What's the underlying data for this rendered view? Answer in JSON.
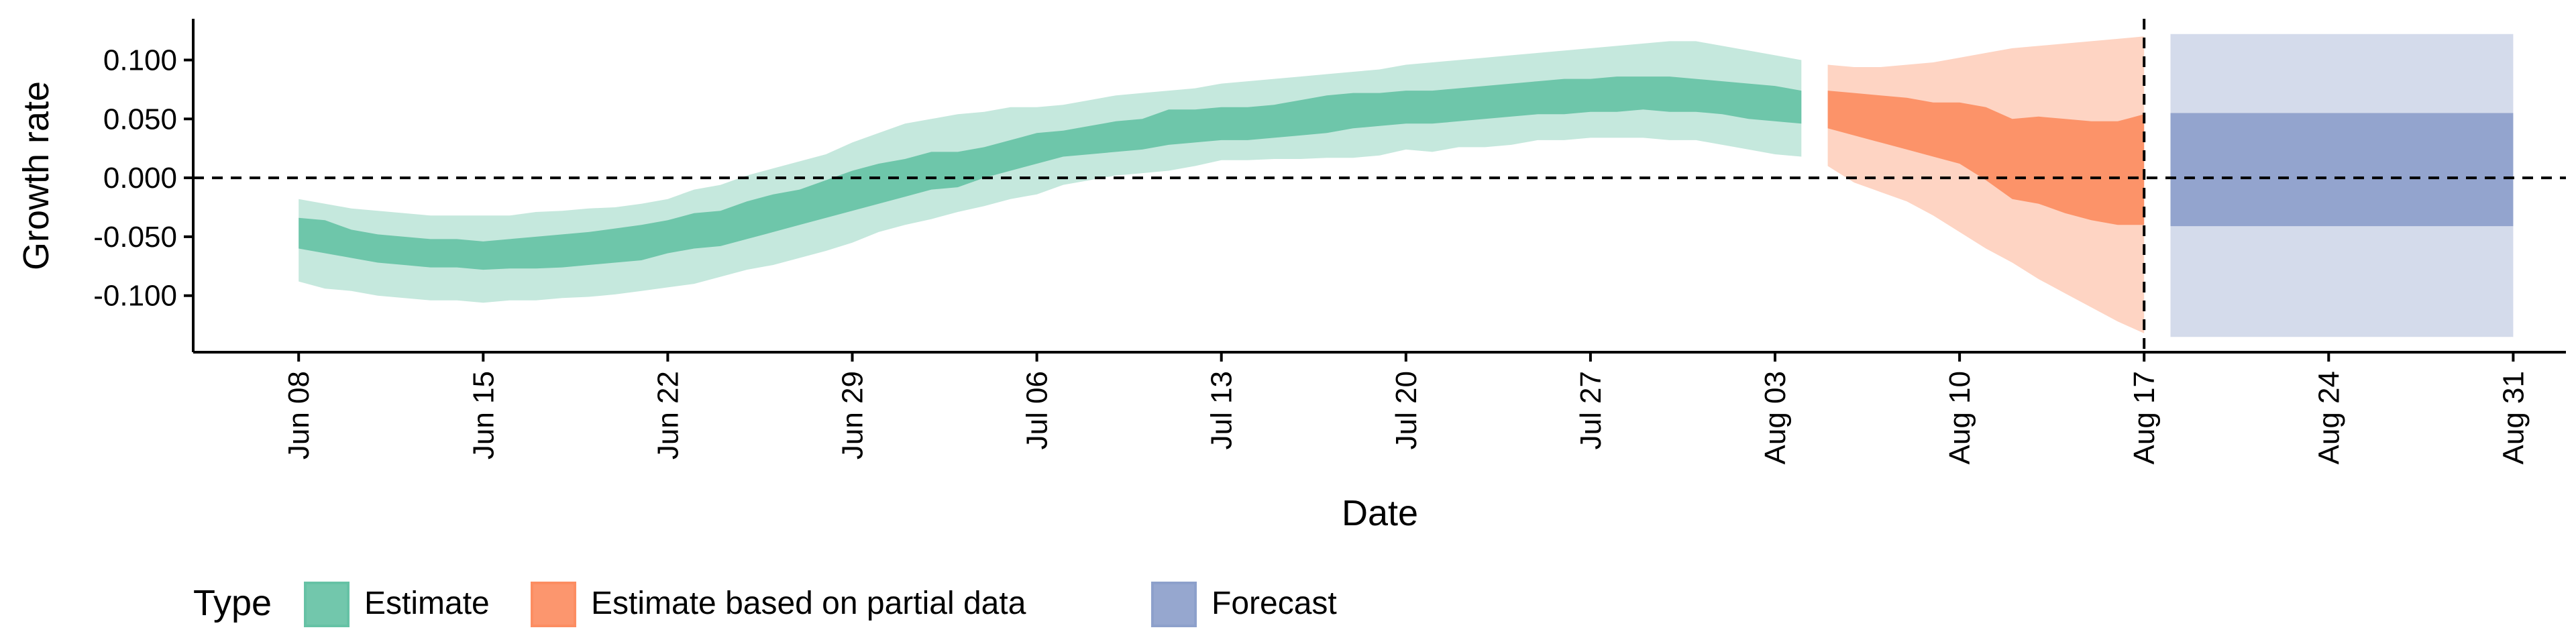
{
  "chart_data": {
    "type": "area",
    "xlabel": "Date",
    "ylabel": "Growth rate",
    "x_range": [
      "2020-06-04",
      "2020-09-02"
    ],
    "ylim": [
      -0.148,
      0.135
    ],
    "y_ticks": [
      {
        "value": 0.1,
        "label": "0.100"
      },
      {
        "value": 0.05,
        "label": "0.050"
      },
      {
        "value": 0.0,
        "label": "0.000"
      },
      {
        "value": -0.05,
        "label": "-0.050"
      },
      {
        "value": -0.1,
        "label": "-0.100"
      }
    ],
    "x_ticks": [
      {
        "date": "2020-06-08",
        "label": "Jun 08"
      },
      {
        "date": "2020-06-15",
        "label": "Jun 15"
      },
      {
        "date": "2020-06-22",
        "label": "Jun 22"
      },
      {
        "date": "2020-06-29",
        "label": "Jun 29"
      },
      {
        "date": "2020-07-06",
        "label": "Jul 06"
      },
      {
        "date": "2020-07-13",
        "label": "Jul 13"
      },
      {
        "date": "2020-07-20",
        "label": "Jul 20"
      },
      {
        "date": "2020-07-27",
        "label": "Jul 27"
      },
      {
        "date": "2020-08-03",
        "label": "Aug 03"
      },
      {
        "date": "2020-08-10",
        "label": "Aug 10"
      },
      {
        "date": "2020-08-17",
        "label": "Aug 17"
      },
      {
        "date": "2020-08-24",
        "label": "Aug 24"
      },
      {
        "date": "2020-08-31",
        "label": "Aug 31"
      }
    ],
    "reference_lines": [
      {
        "axis": "y",
        "value": 0.0,
        "style": "dashed"
      },
      {
        "axis": "x",
        "value": "2020-08-17",
        "style": "dashed"
      }
    ],
    "legend": {
      "title": "Type",
      "position": "bottom-left"
    },
    "series": [
      {
        "name": "Estimate",
        "color": "#66C2A5",
        "date": [
          "2020-06-08",
          "2020-06-09",
          "2020-06-10",
          "2020-06-11",
          "2020-06-12",
          "2020-06-13",
          "2020-06-14",
          "2020-06-15",
          "2020-06-16",
          "2020-06-17",
          "2020-06-18",
          "2020-06-19",
          "2020-06-20",
          "2020-06-21",
          "2020-06-22",
          "2020-06-23",
          "2020-06-24",
          "2020-06-25",
          "2020-06-26",
          "2020-06-27",
          "2020-06-28",
          "2020-06-29",
          "2020-06-30",
          "2020-07-01",
          "2020-07-02",
          "2020-07-03",
          "2020-07-04",
          "2020-07-05",
          "2020-07-06",
          "2020-07-07",
          "2020-07-08",
          "2020-07-09",
          "2020-07-10",
          "2020-07-11",
          "2020-07-12",
          "2020-07-13",
          "2020-07-14",
          "2020-07-15",
          "2020-07-16",
          "2020-07-17",
          "2020-07-18",
          "2020-07-19",
          "2020-07-20",
          "2020-07-21",
          "2020-07-22",
          "2020-07-23",
          "2020-07-24",
          "2020-07-25",
          "2020-07-26",
          "2020-07-27",
          "2020-07-28",
          "2020-07-29",
          "2020-07-30",
          "2020-07-31",
          "2020-08-01",
          "2020-08-02",
          "2020-08-03",
          "2020-08-04"
        ],
        "lower_90": [
          -0.088,
          -0.094,
          -0.096,
          -0.1,
          -0.102,
          -0.104,
          -0.104,
          -0.106,
          -0.104,
          -0.104,
          -0.102,
          -0.101,
          -0.099,
          -0.096,
          -0.093,
          -0.09,
          -0.084,
          -0.078,
          -0.074,
          -0.068,
          -0.062,
          -0.055,
          -0.046,
          -0.04,
          -0.035,
          -0.029,
          -0.024,
          -0.018,
          -0.014,
          -0.006,
          -0.002,
          0.002,
          0.004,
          0.006,
          0.01,
          0.015,
          0.015,
          0.016,
          0.016,
          0.017,
          0.017,
          0.019,
          0.024,
          0.022,
          0.026,
          0.026,
          0.028,
          0.032,
          0.032,
          0.034,
          0.034,
          0.034,
          0.032,
          0.032,
          0.028,
          0.024,
          0.02,
          0.018
        ],
        "upper_90": [
          -0.018,
          -0.022,
          -0.026,
          -0.028,
          -0.03,
          -0.032,
          -0.032,
          -0.032,
          -0.032,
          -0.029,
          -0.028,
          -0.026,
          -0.025,
          -0.022,
          -0.018,
          -0.01,
          -0.006,
          0.002,
          0.008,
          0.014,
          0.02,
          0.03,
          0.038,
          0.046,
          0.05,
          0.054,
          0.056,
          0.06,
          0.06,
          0.062,
          0.066,
          0.07,
          0.072,
          0.074,
          0.076,
          0.08,
          0.082,
          0.084,
          0.086,
          0.088,
          0.09,
          0.092,
          0.096,
          0.098,
          0.1,
          0.102,
          0.104,
          0.106,
          0.108,
          0.11,
          0.112,
          0.114,
          0.116,
          0.116,
          0.112,
          0.108,
          0.104,
          0.1
        ],
        "lower_50": [
          -0.06,
          -0.064,
          -0.068,
          -0.072,
          -0.074,
          -0.076,
          -0.076,
          -0.078,
          -0.077,
          -0.077,
          -0.076,
          -0.074,
          -0.072,
          -0.07,
          -0.064,
          -0.06,
          -0.058,
          -0.052,
          -0.046,
          -0.04,
          -0.034,
          -0.028,
          -0.022,
          -0.016,
          -0.01,
          -0.008,
          0.0,
          0.006,
          0.012,
          0.018,
          0.02,
          0.022,
          0.024,
          0.028,
          0.03,
          0.032,
          0.032,
          0.034,
          0.036,
          0.038,
          0.042,
          0.044,
          0.046,
          0.046,
          0.048,
          0.05,
          0.052,
          0.054,
          0.054,
          0.056,
          0.056,
          0.058,
          0.056,
          0.056,
          0.054,
          0.05,
          0.048,
          0.046
        ],
        "upper_50": [
          -0.034,
          -0.036,
          -0.044,
          -0.048,
          -0.05,
          -0.052,
          -0.052,
          -0.054,
          -0.052,
          -0.05,
          -0.048,
          -0.046,
          -0.043,
          -0.04,
          -0.036,
          -0.03,
          -0.028,
          -0.02,
          -0.014,
          -0.01,
          -0.002,
          0.006,
          0.012,
          0.016,
          0.022,
          0.022,
          0.026,
          0.032,
          0.038,
          0.04,
          0.044,
          0.048,
          0.05,
          0.058,
          0.058,
          0.06,
          0.06,
          0.062,
          0.066,
          0.07,
          0.072,
          0.072,
          0.074,
          0.074,
          0.076,
          0.078,
          0.08,
          0.082,
          0.084,
          0.084,
          0.086,
          0.086,
          0.086,
          0.084,
          0.082,
          0.08,
          0.078,
          0.074
        ]
      },
      {
        "name": "Estimate based on partial data",
        "color": "#FC8D62",
        "date": [
          "2020-08-05",
          "2020-08-06",
          "2020-08-07",
          "2020-08-08",
          "2020-08-09",
          "2020-08-10",
          "2020-08-11",
          "2020-08-12",
          "2020-08-13",
          "2020-08-14",
          "2020-08-15",
          "2020-08-16",
          "2020-08-17"
        ],
        "lower_90": [
          0.01,
          -0.004,
          -0.012,
          -0.02,
          -0.032,
          -0.046,
          -0.06,
          -0.072,
          -0.086,
          -0.098,
          -0.11,
          -0.122,
          -0.132
        ],
        "upper_90": [
          0.096,
          0.094,
          0.094,
          0.096,
          0.098,
          0.102,
          0.106,
          0.11,
          0.112,
          0.114,
          0.116,
          0.118,
          0.12
        ],
        "lower_50": [
          0.042,
          0.036,
          0.03,
          0.024,
          0.018,
          0.012,
          -0.002,
          -0.018,
          -0.022,
          -0.03,
          -0.036,
          -0.04,
          -0.04
        ],
        "upper_50": [
          0.074,
          0.072,
          0.07,
          0.068,
          0.064,
          0.064,
          0.06,
          0.05,
          0.052,
          0.05,
          0.048,
          0.048,
          0.054
        ]
      },
      {
        "name": "Forecast",
        "color": "#8DA0CB",
        "date": [
          "2020-08-18",
          "2020-08-31"
        ],
        "lower_90": [
          -0.135,
          -0.135
        ],
        "upper_90": [
          0.122,
          0.122
        ],
        "lower_50": [
          -0.041,
          -0.041
        ],
        "upper_50": [
          0.055,
          0.055
        ]
      }
    ]
  }
}
